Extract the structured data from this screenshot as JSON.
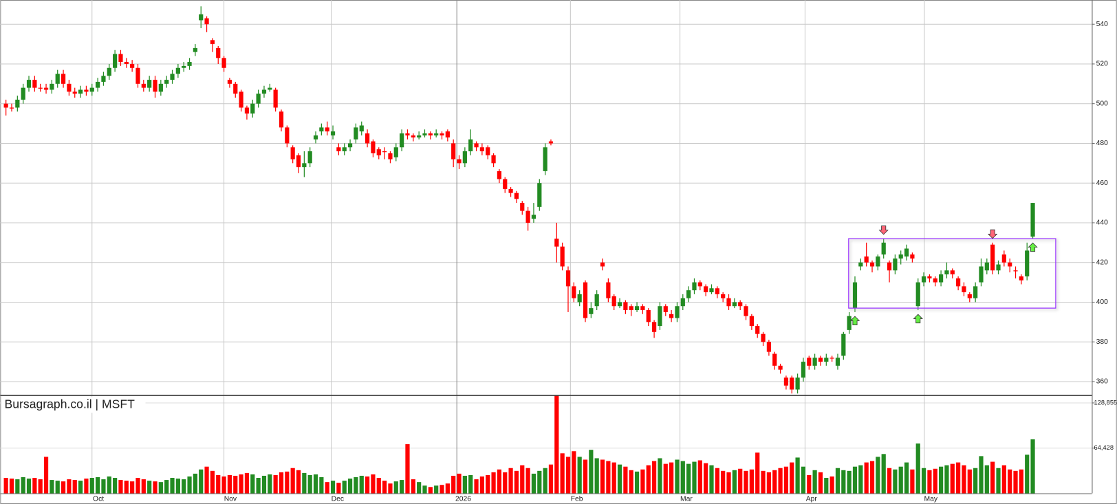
{
  "chart_data": {
    "type": "candlestick",
    "title": "Bursagraph.co.il | MSFT",
    "up_color": "#228b22",
    "down_color": "#ff0000",
    "xlim": [
      -1,
      189.3
    ],
    "xticks": [
      {
        "value": 15,
        "label": "Oct"
      },
      {
        "value": 38,
        "label": "Nov"
      },
      {
        "value": 56.7,
        "label": "Dec"
      },
      {
        "value": 78.6,
        "label": "2026"
      },
      {
        "value": 98.4,
        "label": "Feb"
      },
      {
        "value": 117.5,
        "label": "Mar"
      },
      {
        "value": 139.3,
        "label": "Apr"
      },
      {
        "value": 160.1,
        "label": "May"
      }
    ],
    "ylim": [
      353.2,
      552.2
    ],
    "yticks": [
      360,
      380,
      400,
      420,
      440,
      460,
      480,
      500,
      520,
      540
    ],
    "vlim": [
      0,
      140000
    ],
    "vticks": [
      {
        "value": 64428,
        "label": "64,428"
      },
      {
        "value": 128855,
        "label": "128,855"
      }
    ],
    "grid": true,
    "ohlc": [
      [
        500,
        502,
        494,
        498
      ],
      [
        498,
        500,
        496,
        498
      ],
      [
        498,
        504,
        496,
        502
      ],
      [
        502,
        510,
        500,
        508
      ],
      [
        508,
        514,
        506,
        512
      ],
      [
        512,
        514,
        506,
        508
      ],
      [
        508,
        510,
        506,
        508
      ],
      [
        508,
        510,
        505,
        507
      ],
      [
        507,
        512,
        505,
        510
      ],
      [
        510,
        517,
        508,
        515
      ],
      [
        515,
        517,
        508,
        510
      ],
      [
        510,
        512,
        504,
        506
      ],
      [
        506,
        508,
        503,
        505
      ],
      [
        505,
        509,
        503,
        507
      ],
      [
        507,
        509,
        504,
        506
      ],
      [
        506,
        510,
        504,
        508
      ],
      [
        508,
        513,
        506,
        511
      ],
      [
        511,
        516,
        509,
        514
      ],
      [
        514,
        520,
        512,
        518
      ],
      [
        518,
        527,
        516,
        525
      ],
      [
        525,
        527,
        519,
        521
      ],
      [
        521,
        523,
        518,
        520
      ],
      [
        520,
        522,
        516,
        518
      ],
      [
        518,
        520,
        508,
        510
      ],
      [
        510,
        512,
        506,
        508
      ],
      [
        508,
        514,
        506,
        512
      ],
      [
        512,
        514,
        503,
        506
      ],
      [
        506,
        512,
        504,
        510
      ],
      [
        510,
        514,
        508,
        512
      ],
      [
        512,
        517,
        510,
        515
      ],
      [
        515,
        520,
        513,
        518
      ],
      [
        518,
        521,
        516,
        519
      ],
      [
        519,
        523,
        517,
        521
      ],
      [
        526,
        530,
        524,
        528
      ],
      [
        542,
        549,
        538,
        545
      ],
      [
        543,
        544,
        536,
        540
      ],
      [
        532,
        533,
        526,
        530
      ],
      [
        528,
        529,
        520,
        523
      ],
      [
        523,
        524,
        516,
        518
      ],
      [
        512,
        513,
        508,
        510
      ],
      [
        510,
        511,
        503,
        505
      ],
      [
        506,
        507,
        496,
        498
      ],
      [
        498,
        499,
        492,
        495
      ],
      [
        495,
        502,
        493,
        500
      ],
      [
        500,
        507,
        498,
        505
      ],
      [
        505,
        509,
        503,
        507
      ],
      [
        507,
        510,
        506,
        508
      ],
      [
        507,
        508,
        496,
        498
      ],
      [
        496,
        497,
        486,
        488
      ],
      [
        488,
        489,
        478,
        480
      ],
      [
        478,
        479,
        470,
        472
      ],
      [
        474,
        475,
        465,
        468
      ],
      [
        468,
        476,
        463,
        470
      ],
      [
        470,
        478,
        468,
        476
      ],
      [
        482,
        486,
        480,
        484
      ],
      [
        486,
        490,
        484,
        488
      ],
      [
        488,
        491,
        484,
        486
      ],
      [
        484,
        489,
        482,
        486
      ],
      [
        478,
        480,
        474,
        476
      ],
      [
        476,
        480,
        474,
        478
      ],
      [
        478,
        482,
        476,
        480
      ],
      [
        482,
        490,
        480,
        488
      ],
      [
        486,
        491,
        484,
        489
      ],
      [
        485,
        487,
        478,
        480
      ],
      [
        481,
        482,
        473,
        475
      ],
      [
        477,
        478,
        472,
        474
      ],
      [
        476,
        478,
        472,
        476
      ],
      [
        475,
        476,
        470,
        472
      ],
      [
        473,
        480,
        471,
        478
      ],
      [
        478,
        487,
        476,
        485
      ],
      [
        485,
        487,
        482,
        484
      ],
      [
        484,
        485,
        481,
        483
      ],
      [
        483,
        486,
        482,
        484
      ],
      [
        484,
        487,
        483,
        485
      ],
      [
        485,
        486,
        482,
        484
      ],
      [
        484,
        487,
        483,
        485
      ],
      [
        485,
        486,
        482,
        484
      ],
      [
        486,
        487,
        481,
        483
      ],
      [
        480,
        482,
        468,
        472
      ],
      [
        472,
        474,
        467,
        470
      ],
      [
        470,
        478,
        468,
        476
      ],
      [
        476,
        487,
        474,
        482
      ],
      [
        480,
        481,
        476,
        478
      ],
      [
        478,
        480,
        474,
        476
      ],
      [
        478,
        479,
        472,
        474
      ],
      [
        474,
        475,
        468,
        470
      ],
      [
        466,
        467,
        460,
        462
      ],
      [
        462,
        463,
        455,
        457
      ],
      [
        457,
        458,
        453,
        455
      ],
      [
        455,
        456,
        450,
        452
      ],
      [
        450,
        451,
        444,
        446
      ],
      [
        446,
        448,
        436,
        440
      ],
      [
        442,
        450,
        440,
        444
      ],
      [
        448,
        462,
        446,
        460
      ],
      [
        466,
        480,
        464,
        478
      ],
      [
        481,
        482,
        479,
        480
      ],
      [
        432,
        440,
        420,
        428
      ],
      [
        428,
        430,
        416,
        418
      ],
      [
        416,
        418,
        395,
        408
      ],
      [
        408,
        410,
        400,
        402
      ],
      [
        400,
        406,
        398,
        404
      ],
      [
        410,
        411,
        390,
        392
      ],
      [
        394,
        400,
        392,
        397
      ],
      [
        398,
        406,
        396,
        404
      ],
      [
        420,
        422,
        416,
        418
      ],
      [
        410,
        412,
        400,
        402
      ],
      [
        403,
        404,
        396,
        398
      ],
      [
        398,
        402,
        397,
        400
      ],
      [
        400,
        401,
        394,
        396
      ],
      [
        398,
        399,
        393,
        396
      ],
      [
        396,
        400,
        395,
        398
      ],
      [
        398,
        399,
        394,
        396
      ],
      [
        396,
        397,
        388,
        390
      ],
      [
        390,
        391,
        382,
        385
      ],
      [
        388,
        400,
        386,
        398
      ],
      [
        398,
        399,
        393,
        395
      ],
      [
        394,
        396,
        390,
        392
      ],
      [
        392,
        400,
        390,
        398
      ],
      [
        398,
        404,
        396,
        402
      ],
      [
        402,
        408,
        400,
        406
      ],
      [
        406,
        412,
        404,
        410
      ],
      [
        410,
        411,
        406,
        408
      ],
      [
        408,
        409,
        403,
        405
      ],
      [
        405,
        409,
        404,
        407
      ],
      [
        407,
        408,
        402,
        404
      ],
      [
        404,
        405,
        400,
        402
      ],
      [
        402,
        404,
        396,
        398
      ],
      [
        398,
        402,
        397,
        400
      ],
      [
        400,
        401,
        396,
        398
      ],
      [
        398,
        399,
        391,
        393
      ],
      [
        393,
        394,
        386,
        388
      ],
      [
        388,
        389,
        382,
        384
      ],
      [
        384,
        385,
        378,
        380
      ],
      [
        380,
        381,
        373,
        375
      ],
      [
        374,
        375,
        366,
        368
      ],
      [
        368,
        369,
        364,
        366
      ],
      [
        362,
        363,
        356,
        358
      ],
      [
        362,
        363,
        354,
        356
      ],
      [
        356,
        364,
        354,
        362
      ],
      [
        362,
        372,
        360,
        370
      ],
      [
        372,
        373,
        366,
        368
      ],
      [
        368,
        374,
        366,
        372
      ],
      [
        372,
        373,
        368,
        370
      ],
      [
        370,
        374,
        368,
        372
      ],
      [
        372,
        373,
        370,
        372
      ],
      [
        368,
        374,
        366,
        372
      ],
      [
        373,
        385,
        371,
        384
      ],
      [
        386,
        395,
        384,
        393
      ],
      [
        397,
        413,
        395,
        410
      ],
      [
        418,
        422,
        416,
        420
      ],
      [
        423,
        430,
        418,
        420
      ],
      [
        420,
        421,
        415,
        418
      ],
      [
        418,
        424,
        416,
        423
      ],
      [
        424,
        432,
        422,
        430
      ],
      [
        420,
        421,
        410,
        416
      ],
      [
        416,
        424,
        414,
        422
      ],
      [
        422,
        426,
        419,
        424
      ],
      [
        423,
        429,
        421,
        427
      ],
      [
        424,
        425,
        420,
        422
      ],
      [
        398,
        412,
        396,
        410
      ],
      [
        410,
        415,
        408,
        413
      ],
      [
        413,
        414,
        410,
        412
      ],
      [
        412,
        413,
        408,
        410
      ],
      [
        410,
        416,
        408,
        414
      ],
      [
        414,
        420,
        412,
        416
      ],
      [
        416,
        417,
        412,
        414
      ],
      [
        412,
        413,
        406,
        408
      ],
      [
        408,
        410,
        403,
        405
      ],
      [
        404,
        405,
        400,
        402
      ],
      [
        402,
        410,
        400,
        408
      ],
      [
        410,
        422,
        408,
        418
      ],
      [
        416,
        422,
        414,
        420
      ],
      [
        429,
        430,
        414,
        416
      ],
      [
        416,
        421,
        414,
        419
      ],
      [
        424,
        426,
        418,
        420
      ],
      [
        420,
        422,
        415,
        418
      ],
      [
        416,
        418,
        412,
        416
      ],
      [
        413,
        414,
        409,
        411
      ],
      [
        413,
        430,
        411,
        426
      ],
      [
        433,
        450,
        432,
        450
      ]
    ],
    "volume": [
      22000,
      21000,
      20000,
      23000,
      21000,
      22000,
      20000,
      52000,
      19000,
      18000,
      17000,
      20000,
      19000,
      18000,
      21000,
      22000,
      23000,
      20000,
      24000,
      22000,
      19000,
      18000,
      17000,
      22000,
      20000,
      18000,
      17000,
      16000,
      19000,
      22000,
      21000,
      20000,
      24000,
      28000,
      34000,
      38000,
      32000,
      26000,
      24000,
      26000,
      25000,
      27000,
      29000,
      27000,
      22000,
      25000,
      27000,
      26000,
      30000,
      31000,
      36000,
      33000,
      29000,
      26000,
      27000,
      23000,
      16000,
      18000,
      15000,
      18000,
      21000,
      23000,
      25000,
      24000,
      27000,
      22000,
      18000,
      14000,
      17000,
      19000,
      70000,
      20000,
      16000,
      11000,
      9000,
      11000,
      12000,
      14000,
      25000,
      28000,
      25000,
      26000,
      20000,
      24000,
      26000,
      30000,
      34000,
      30000,
      36000,
      32000,
      40000,
      36000,
      28000,
      32000,
      36000,
      41000,
      140000,
      57000,
      52000,
      60000,
      52000,
      48000,
      62000,
      50000,
      48000,
      46000,
      44000,
      41000,
      38000,
      33000,
      31000,
      34000,
      40000,
      46000,
      50000,
      42000,
      44000,
      48000,
      46000,
      42000,
      45000,
      47000,
      43000,
      40000,
      36000,
      32000,
      30000,
      33000,
      35000,
      32000,
      34000,
      58000,
      32000,
      30000,
      33000,
      36000,
      38000,
      44000,
      51000,
      38000,
      26000,
      33000,
      30000,
      22000,
      24000,
      36000,
      33000,
      32000,
      38000,
      40000,
      44000,
      46000,
      52000,
      56000,
      36000,
      34000,
      38000,
      44000,
      34000,
      71000,
      36000,
      33000,
      35000,
      38000,
      40000,
      42000,
      44000,
      40000,
      34000,
      36000,
      53000,
      40000,
      45000,
      36000,
      40000,
      34000,
      32000,
      34000,
      55000,
      77000
    ],
    "range_box": {
      "from": 146.9,
      "to": 183,
      "low": 397,
      "high": 432,
      "color": "#9933ff"
    },
    "signals": [
      {
        "index": 148,
        "direction": "up"
      },
      {
        "index": 153,
        "direction": "down"
      },
      {
        "index": 159,
        "direction": "up"
      },
      {
        "index": 172,
        "direction": "down"
      },
      {
        "index": 179,
        "direction": "up"
      }
    ]
  }
}
